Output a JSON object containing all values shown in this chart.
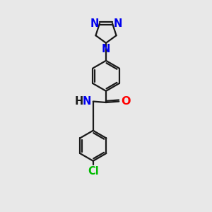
{
  "background_color": "#e8e8e8",
  "bond_color": "#1a1a1a",
  "N_color": "#0000ee",
  "O_color": "#ff0000",
  "Cl_color": "#00bb00",
  "NH_color": "#0000ee",
  "line_width": 1.6,
  "font_size": 10.5,
  "fig_size": [
    3.0,
    3.0
  ],
  "dpi": 100,
  "xlim": [
    0,
    10
  ],
  "ylim": [
    0,
    10
  ]
}
